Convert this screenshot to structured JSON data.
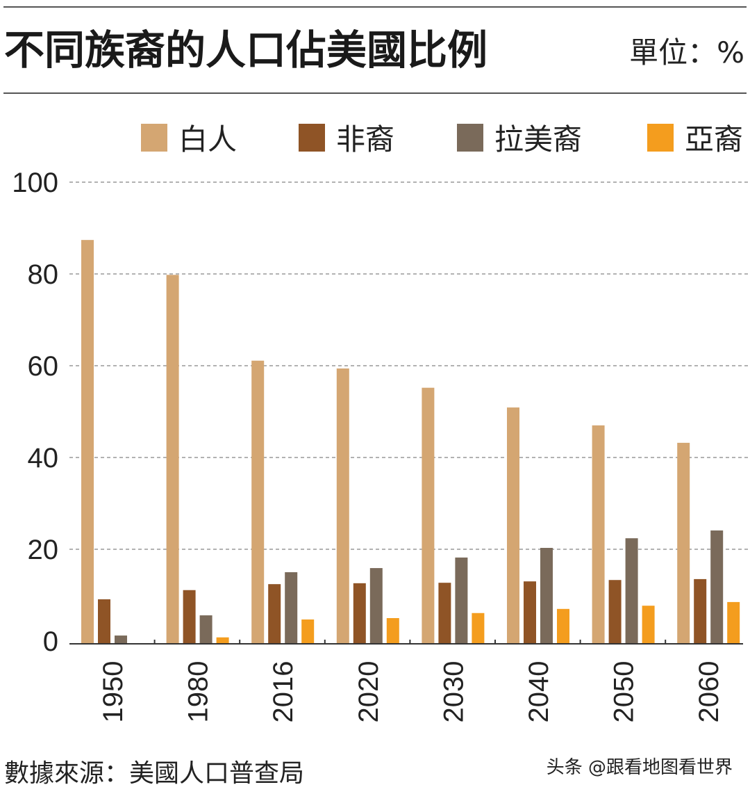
{
  "chart_data": {
    "type": "bar",
    "title": "不同族裔的人口佔美國比例",
    "unit_label": "單位：%",
    "categories": [
      "1950",
      "1980",
      "2016",
      "2020",
      "2030",
      "2040",
      "2050",
      "2060"
    ],
    "series": [
      {
        "name": "白人",
        "color": "#d4a672",
        "values": [
          87.4,
          79.8,
          61.1,
          59.4,
          55.2,
          50.9,
          47.0,
          43.2
        ]
      },
      {
        "name": "非裔",
        "color": "#8f5426",
        "values": [
          9.1,
          11.1,
          12.4,
          12.6,
          12.7,
          13.0,
          13.3,
          13.5
        ]
      },
      {
        "name": "拉美裔",
        "color": "#7a6a5a",
        "values": [
          1.2,
          5.6,
          15.0,
          15.9,
          18.2,
          20.3,
          22.4,
          24.1
        ]
      },
      {
        "name": "亞裔",
        "color": "#f49d1e",
        "values": [
          0,
          0.8,
          4.7,
          5.0,
          6.1,
          7.0,
          7.7,
          8.5
        ]
      }
    ],
    "ylim": [
      0,
      100
    ],
    "yticks": [
      "0",
      "20",
      "40",
      "60",
      "80",
      "100"
    ],
    "grid": true,
    "legend_position": "top",
    "source": "數據來源：美國人口普查局"
  },
  "watermark": "头条 @跟看地图看世界"
}
